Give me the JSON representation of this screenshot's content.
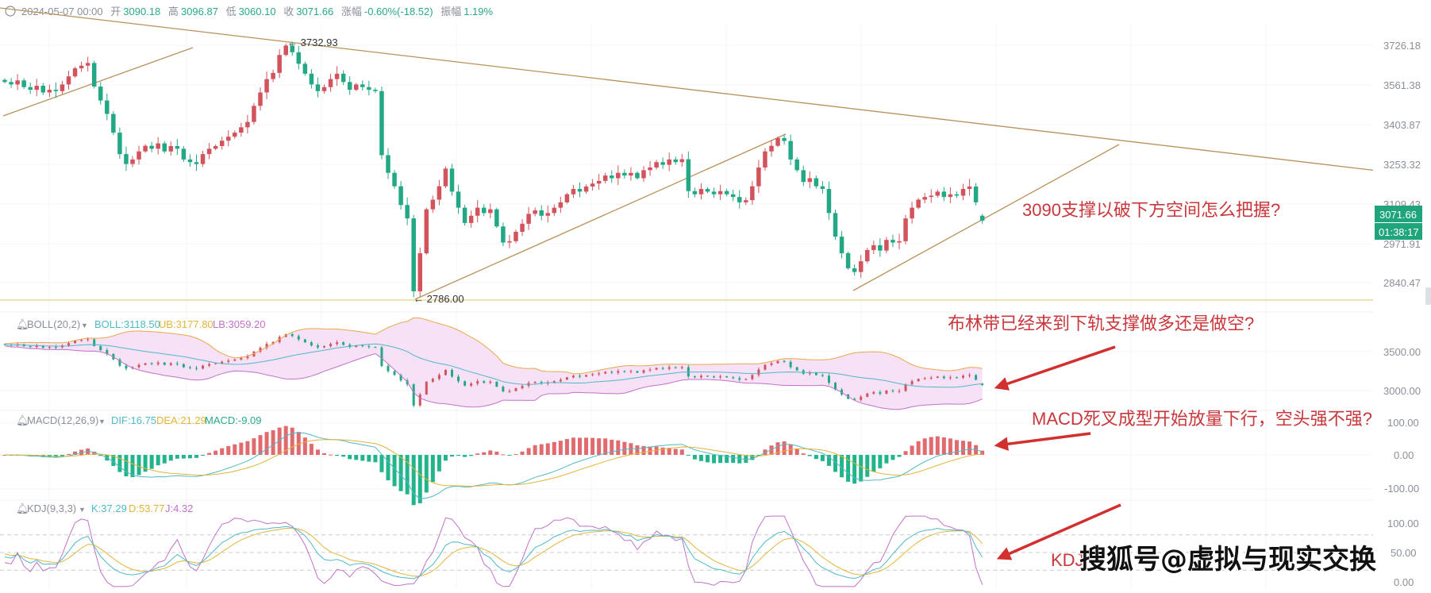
{
  "header": {
    "datetime": "2024-05-07 00:00",
    "open_label": "开",
    "open": "3090.18",
    "high_label": "高",
    "high": "3096.87",
    "low_label": "低",
    "low": "3060.10",
    "close_label": "收",
    "close": "3071.66",
    "change_label": "涨幅",
    "change": "-0.60%(-18.52)",
    "amplitude_label": "振幅",
    "amplitude": "1.19%"
  },
  "price_axis": [
    "3726.18",
    "3561.38",
    "3403.87",
    "3253.32",
    "3109.43",
    "2971.91",
    "2840.47"
  ],
  "last_price_tag": "3071.66",
  "countdown_tag": "01:38:17",
  "marks": {
    "high": "3732.93",
    "low": "2786.00"
  },
  "indicators": {
    "boll": {
      "name": "BOLL(20,2)",
      "mid": "BOLL:3118.50",
      "ub": "UB:3177.80",
      "lb": "LB:3059.20",
      "axis": [
        "3500.00",
        "3000.00"
      ]
    },
    "macd": {
      "name": "MACD(12,26,9)",
      "dif": "DIF:16.75",
      "dea": "DEA:21.29",
      "macd": "MACD:-9.09",
      "axis": [
        "100.00",
        "0.00",
        "-100.00"
      ]
    },
    "kdj": {
      "name": "KDJ(9,3,3)",
      "k": "K:37.29",
      "d": "D:53.77",
      "j": "J:4.32",
      "axis": [
        "100.00",
        "50.00",
        "0.00"
      ]
    }
  },
  "annotations": {
    "main": "3090支撑以破下方空间怎么把握?",
    "boll": "布林带已经来到下轨支撑做多还是做空?",
    "macd": "MACD死叉成型开始放量下行，空头强不强?",
    "kdj": "KDJ"
  },
  "watermark": "搜狐号@虚拟与现实交换",
  "colors": {
    "up": "#d2535c",
    "down": "#22a884",
    "trendline": "#b8925a",
    "support": "#e6d27a",
    "annotation": "#c8373b",
    "tag": "#1fa47c"
  },
  "chart_data": {
    "type": "candlestick",
    "up_color": "red",
    "down_color": "green",
    "last_close": 3071.66,
    "period_high": 3732.93,
    "period_low": 2786.0,
    "price_range": [
      2786.0,
      3732.93
    ],
    "closes": [
      3589,
      3580,
      3595,
      3570,
      3560,
      3575,
      3550,
      3560,
      3555,
      3580,
      3610,
      3640,
      3650,
      3660,
      3572,
      3520,
      3470,
      3400,
      3320,
      3283,
      3300,
      3330,
      3351,
      3340,
      3360,
      3330,
      3350,
      3340,
      3300,
      3290,
      3283,
      3320,
      3340,
      3350,
      3370,
      3385,
      3400,
      3420,
      3440,
      3500,
      3550,
      3600,
      3623,
      3690,
      3725,
      3700,
      3657,
      3620,
      3580,
      3555,
      3570,
      3600,
      3620,
      3589,
      3560,
      3580,
      3570,
      3560,
      3555,
      3316,
      3250,
      3200,
      3130,
      3080,
      2808,
      2950,
      3114,
      3150,
      3200,
      3266,
      3180,
      3120,
      3063,
      3090,
      3120,
      3100,
      3114,
      3050,
      2990,
      2995,
      3030,
      3060,
      3097,
      3110,
      3090,
      3100,
      3120,
      3140,
      3170,
      3190,
      3180,
      3199,
      3210,
      3220,
      3240,
      3230,
      3250,
      3240,
      3250,
      3230,
      3260,
      3270,
      3290,
      3280,
      3300,
      3290,
      3301,
      3182,
      3170,
      3190,
      3180,
      3170,
      3182,
      3170,
      3160,
      3140,
      3148,
      3200,
      3270,
      3330,
      3351,
      3380,
      3369,
      3300,
      3260,
      3216,
      3230,
      3200,
      3190,
      3100,
      3012,
      2950,
      2894,
      2880,
      2920,
      2962,
      2980,
      2960,
      3000,
      2990,
      2995,
      3080,
      3120,
      3150,
      3160,
      3165,
      3180,
      3160,
      3170,
      3165,
      3190,
      3199,
      3140,
      3071.66
    ],
    "boll": {
      "period": 20,
      "k": 2,
      "last": {
        "mid": 3118.5,
        "ub": 3177.8,
        "lb": 3059.2
      },
      "ylim": [
        2700,
        3800
      ]
    },
    "macd": {
      "fast": 12,
      "slow": 26,
      "signal": 9,
      "last": {
        "dif": 16.75,
        "dea": 21.29,
        "macd": -9.09
      },
      "ylim": [
        -130,
        130
      ]
    },
    "kdj": {
      "params": [
        9,
        3,
        3
      ],
      "last": {
        "k": 37.29,
        "d": 53.77,
        "j": 4.32
      },
      "ylim": [
        0,
        100
      ],
      "guides": [
        20,
        50,
        80
      ]
    }
  }
}
